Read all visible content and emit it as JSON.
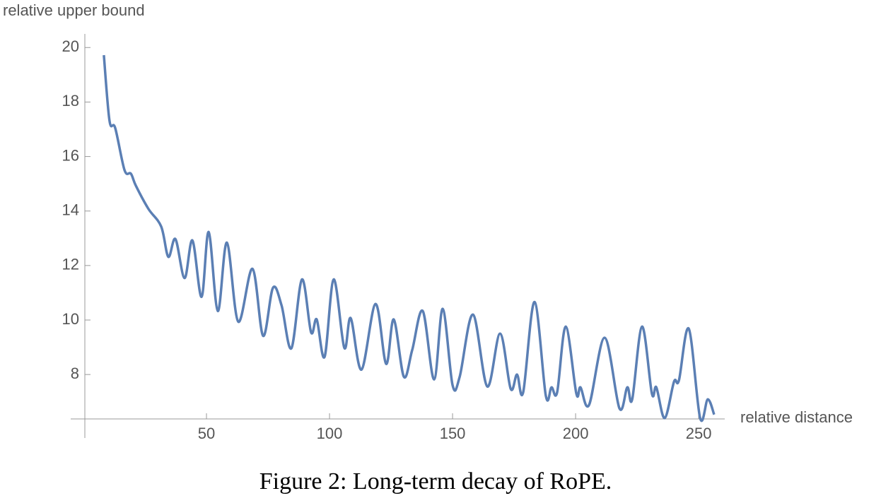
{
  "chart_data": {
    "type": "line",
    "y_label": "relative upper bound",
    "x_label": "relative distance",
    "caption": "Figure 2: Long-term decay of RoPE.",
    "xlim": [
      0,
      260.6
    ],
    "ylim": [
      6.37,
      20.5
    ],
    "xticks": [
      50,
      100,
      150,
      200,
      250
    ],
    "yticks": [
      8,
      10,
      12,
      14,
      16,
      18,
      20
    ],
    "x": [
      8.3,
      10.6,
      12.9,
      16.7,
      19.3,
      21.3,
      26.4,
      31.6,
      34.5,
      37.4,
      41.1,
      44.3,
      48,
      50.9,
      54.6,
      58.3,
      62.9,
      68.7,
      73,
      77,
      80.5,
      84.5,
      88.8,
      92.5,
      94.8,
      98,
      101.7,
      106,
      108.6,
      113,
      118.7,
      123,
      126.1,
      130.2,
      133.6,
      137.9,
      142.5,
      146,
      150,
      152.9,
      158.3,
      164.1,
      169.3,
      173.6,
      176.2,
      178.7,
      183.3,
      187.9,
      190.2,
      192.5,
      196,
      200.3,
      202,
      205.5,
      211.8,
      217.8,
      221,
      223,
      227,
      231,
      232.8,
      236.2,
      240,
      242,
      246,
      250.6,
      253.7,
      256.3
    ],
    "series": [
      {
        "color": "#5b7fb4",
        "values": [
          19.72,
          17.31,
          17.05,
          15.5,
          15.37,
          14.93,
          14.08,
          13.43,
          12.32,
          12.97,
          11.54,
          12.92,
          10.85,
          13.23,
          10.33,
          12.84,
          9.94,
          11.88,
          9.42,
          11.18,
          10.54,
          8.96,
          11.49,
          9.55,
          10.02,
          8.65,
          11.49,
          8.98,
          10.07,
          8.18,
          10.59,
          8.39,
          10.02,
          7.92,
          8.9,
          10.33,
          7.82,
          10.41,
          7.61,
          7.92,
          10.2,
          7.56,
          9.5,
          7.48,
          8.0,
          7.35,
          10.66,
          7.22,
          7.53,
          7.35,
          9.76,
          7.3,
          7.53,
          6.89,
          9.35,
          6.76,
          7.53,
          7.09,
          9.76,
          7.3,
          7.53,
          6.4,
          7.74,
          7.79,
          9.68,
          6.4,
          7.09,
          6.53
        ]
      }
    ]
  }
}
